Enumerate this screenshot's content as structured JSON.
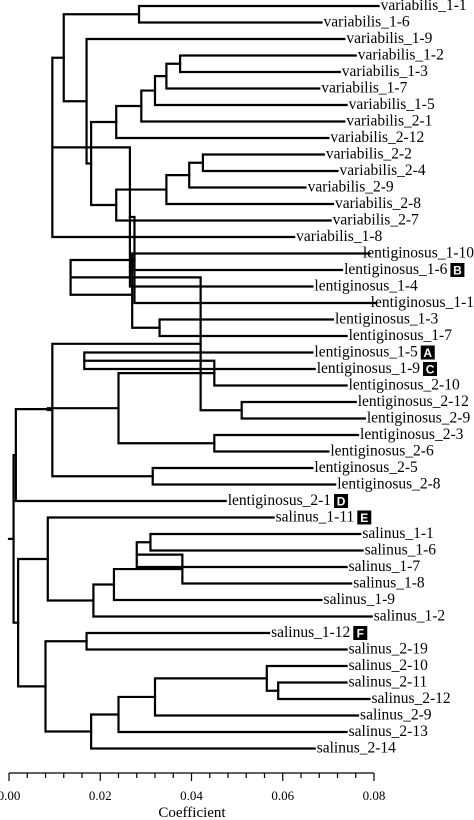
{
  "chart_data": {
    "type": "dendrogram",
    "xlabel": "Coefficient",
    "xlim": [
      0.0,
      0.08
    ],
    "ticks": [
      "0.00",
      "0.02",
      "0.04",
      "0.06",
      "0.08"
    ],
    "tick_values": [
      0.0,
      0.02,
      0.04,
      0.06,
      0.08
    ],
    "leaves": [
      "variabilis_1-1",
      "variabilis_1-6",
      "variabilis_1-9",
      "variabilis_1-2",
      "variabilis_1-3",
      "variabilis_1-7",
      "variabilis_1-5",
      "variabilis_2-1",
      "variabilis_2-12",
      "variabilis_2-2",
      "variabilis_2-4",
      "variabilis_2-9",
      "variabilis_2-8",
      "variabilis_2-7",
      "variabilis_1-8",
      "lentiginosus_1-10",
      "lentiginosus_1-6",
      "lentiginosus_1-4",
      "lentiginosus_1-1",
      "lentiginosus_1-3",
      "lentiginosus_1-7",
      "lentiginosus_1-5",
      "lentiginosus_1-9",
      "lentiginosus_2-10",
      "lentiginosus_2-12",
      "lentiginosus_2-9",
      "lentiginosus_2-3",
      "lentiginosus_2-6",
      "lentiginosus_2-5",
      "lentiginosus_2-8",
      "lentiginosus_2-1",
      "salinus_1-11",
      "salinus_1-1",
      "salinus_1-6",
      "salinus_1-7",
      "salinus_1-8",
      "salinus_1-9",
      "salinus_1-2",
      "salinus_1-12",
      "salinus_2-19",
      "salinus_2-10",
      "salinus_2-11",
      "salinus_2-12",
      "salinus_2-9",
      "salinus_2-13",
      "salinus_2-14"
    ],
    "leaf_heights": [
      0.081,
      0.0685,
      0.0735,
      0.076,
      0.0725,
      0.068,
      0.074,
      0.0735,
      0.07,
      0.069,
      0.072,
      0.065,
      0.071,
      0.0705,
      0.0625,
      0.079,
      0.073,
      0.0665,
      0.0805,
      0.071,
      0.074,
      0.0665,
      0.067,
      0.074,
      0.076,
      0.078,
      0.0765,
      0.07,
      0.0665,
      0.0715,
      0.0475,
      0.058,
      0.077,
      0.0775,
      0.074,
      0.075,
      0.0685,
      0.0795,
      0.057,
      0.074,
      0.074,
      0.074,
      0.079,
      0.0765,
      0.074,
      0.067
    ],
    "merges": [
      [
        0,
        1,
        0.0285
      ],
      [
        3,
        4,
        0.0375
      ],
      [
        47,
        5,
        0.0345
      ],
      [
        48,
        6,
        0.032
      ],
      [
        49,
        7,
        0.029
      ],
      [
        50,
        8,
        0.0235
      ],
      [
        9,
        10,
        0.0425
      ],
      [
        52,
        11,
        0.0395
      ],
      [
        53,
        12,
        0.0345
      ],
      [
        54,
        13,
        0.0235
      ],
      [
        51,
        55,
        0.018
      ],
      [
        56,
        2,
        0.017
      ],
      [
        46,
        57,
        0.012
      ],
      [
        58,
        14,
        0.0095
      ],
      [
        15,
        16,
        0.027
      ],
      [
        59,
        17,
        0.0265
      ],
      [
        19,
        20,
        0.033
      ],
      [
        18,
        61,
        0.0275
      ],
      [
        60,
        62,
        0.027
      ],
      [
        21,
        22,
        0.0165
      ],
      [
        63,
        64,
        0.0135
      ],
      [
        24,
        25,
        0.051
      ],
      [
        23,
        65,
        0.045
      ],
      [
        26,
        27,
        0.045
      ],
      [
        66,
        67,
        0.042
      ],
      [
        28,
        29,
        0.0315
      ],
      [
        68,
        69,
        0.024
      ],
      [
        70,
        71,
        0.0095
      ],
      [
        72,
        73,
        0.0085
      ],
      [
        74,
        30,
        0.0015
      ],
      [
        32,
        33,
        0.031
      ],
      [
        76,
        34,
        0.028
      ],
      [
        77,
        35,
        0.038
      ],
      [
        78,
        36,
        0.023
      ],
      [
        79,
        37,
        0.0185
      ],
      [
        80,
        31,
        0.0085
      ],
      [
        41,
        42,
        0.059
      ],
      [
        40,
        82,
        0.0565
      ],
      [
        83,
        43,
        0.032
      ],
      [
        84,
        44,
        0.024
      ],
      [
        85,
        45,
        0.018
      ],
      [
        38,
        39,
        0.017
      ],
      [
        86,
        87,
        0.008
      ],
      [
        81,
        88,
        0.002
      ],
      [
        75,
        89,
        0.001
      ]
    ],
    "markers": [
      {
        "leaf": "lentiginosus_1-6",
        "label": "B"
      },
      {
        "leaf": "lentiginosus_1-5",
        "label": "A"
      },
      {
        "leaf": "lentiginosus_1-9",
        "label": "C"
      },
      {
        "leaf": "lentiginosus_2-1",
        "label": "D"
      },
      {
        "leaf": "salinus_1-11",
        "label": "E"
      },
      {
        "leaf": "salinus_1-12",
        "label": "F"
      }
    ]
  }
}
